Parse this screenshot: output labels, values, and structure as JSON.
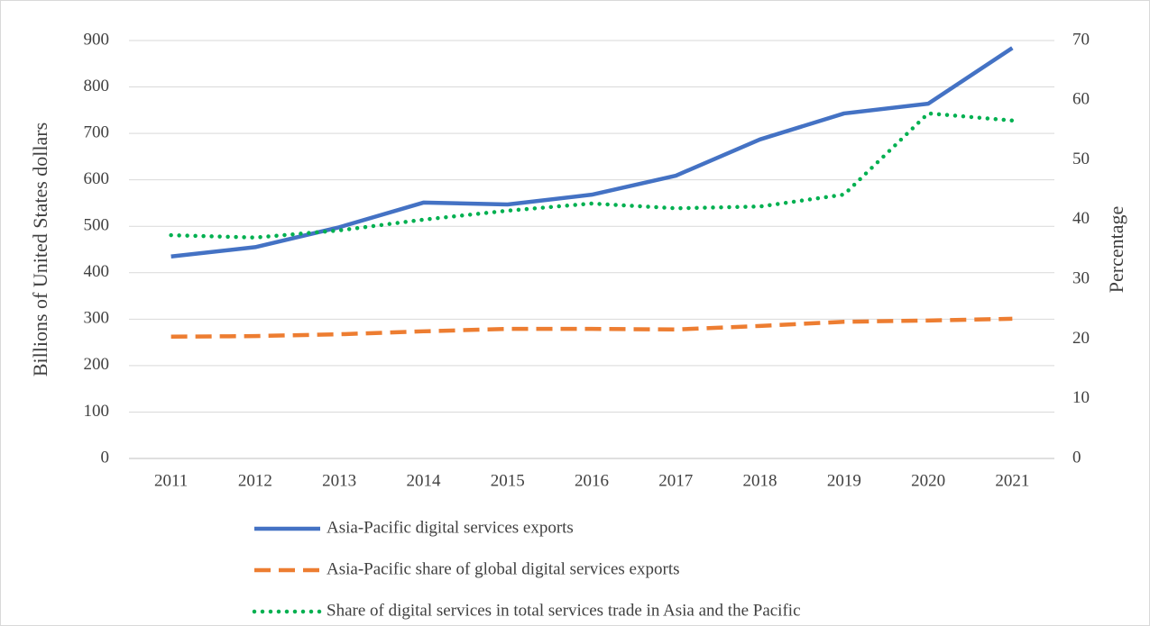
{
  "chart_data": {
    "type": "line",
    "y_label": "Billions of United States dollars",
    "y2_label": "Percentage",
    "categories": [
      "2011",
      "2012",
      "2013",
      "2014",
      "2015",
      "2016",
      "2017",
      "2018",
      "2019",
      "2020",
      "2021"
    ],
    "series": [
      {
        "name": "Asia-Pacific digital services exports",
        "color": "#4472c4",
        "style": "solid",
        "axis": "y",
        "values": [
          435,
          455,
          498,
          551,
          547,
          568,
          609,
          687,
          743,
          764,
          884
        ]
      },
      {
        "name": "Asia-Pacific share of global digital services exports",
        "color": "#ed7d31",
        "style": "dashed",
        "axis": "y2",
        "values": [
          20.4,
          20.5,
          20.8,
          21.3,
          21.7,
          21.7,
          21.6,
          22.2,
          22.9,
          23.1,
          23.4
        ]
      },
      {
        "name": "Share of digital services in total services trade in Asia and the Pacific",
        "color": "#00b050",
        "style": "dotted",
        "axis": "y2",
        "values": [
          37.4,
          37.0,
          38.2,
          40.0,
          41.5,
          42.7,
          41.9,
          42.2,
          44.2,
          57.8,
          56.6
        ]
      }
    ],
    "ylim": [
      0,
      900
    ],
    "yticks": [
      0,
      100,
      200,
      300,
      400,
      500,
      600,
      700,
      800,
      900
    ],
    "y2lim": [
      0,
      70
    ],
    "y2ticks": [
      0,
      10,
      20,
      30,
      40,
      50,
      60,
      70
    ],
    "grid": true,
    "legend": "bottom"
  }
}
